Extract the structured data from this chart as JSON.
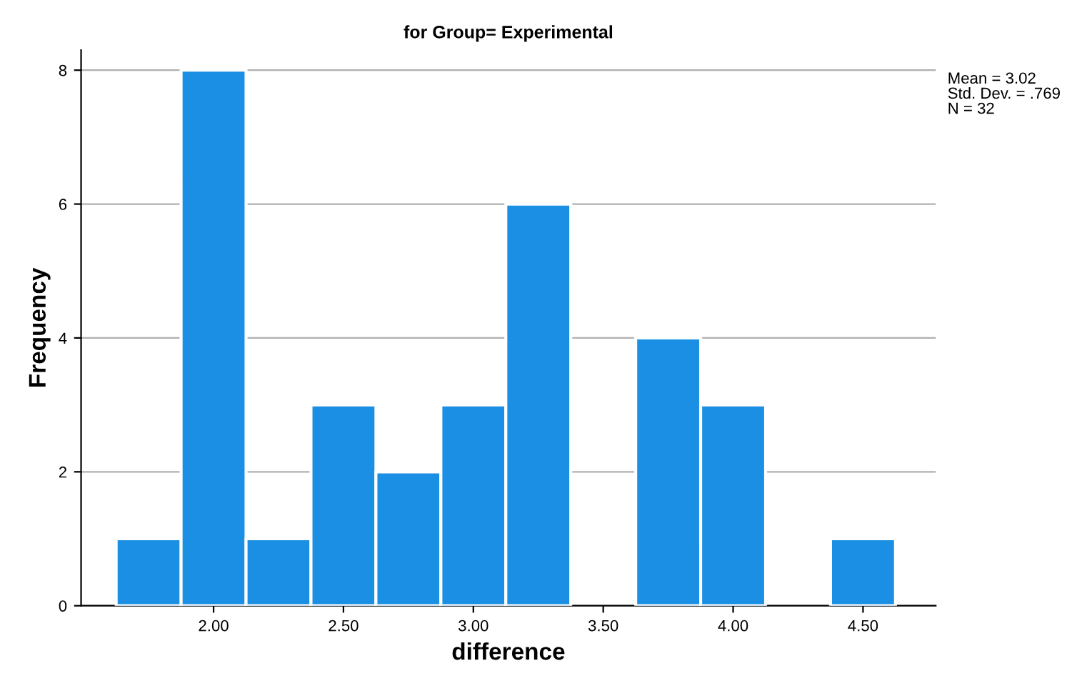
{
  "chart_data": {
    "type": "histogram",
    "title": "for Group= Experimental",
    "xlabel": "difference",
    "ylabel": "Frequency",
    "bins": [
      1.625,
      1.875,
      2.125,
      2.375,
      2.625,
      2.875,
      3.125,
      3.375,
      3.625,
      3.875,
      4.125,
      4.375,
      4.625
    ],
    "values": [
      1,
      8,
      1,
      3,
      2,
      3,
      6,
      0,
      4,
      3,
      0,
      1
    ],
    "color": "#1a8fe3",
    "xlim": [
      1.49,
      4.78
    ],
    "xticks": [
      {
        "value": 2,
        "label": "2.00"
      },
      {
        "value": 2.5,
        "label": "2.50"
      },
      {
        "value": 3,
        "label": "3.00"
      },
      {
        "value": 3.5,
        "label": "3.50"
      },
      {
        "value": 4,
        "label": "4.00"
      },
      {
        "value": 4.5,
        "label": "4.50"
      }
    ],
    "ylim": [
      0,
      8.3
    ],
    "yticks": [
      0,
      2,
      4,
      6,
      8
    ],
    "grid": "y",
    "annotations": [
      "Mean = 3.02",
      "Std. Dev. = .769",
      "N = 32"
    ]
  }
}
